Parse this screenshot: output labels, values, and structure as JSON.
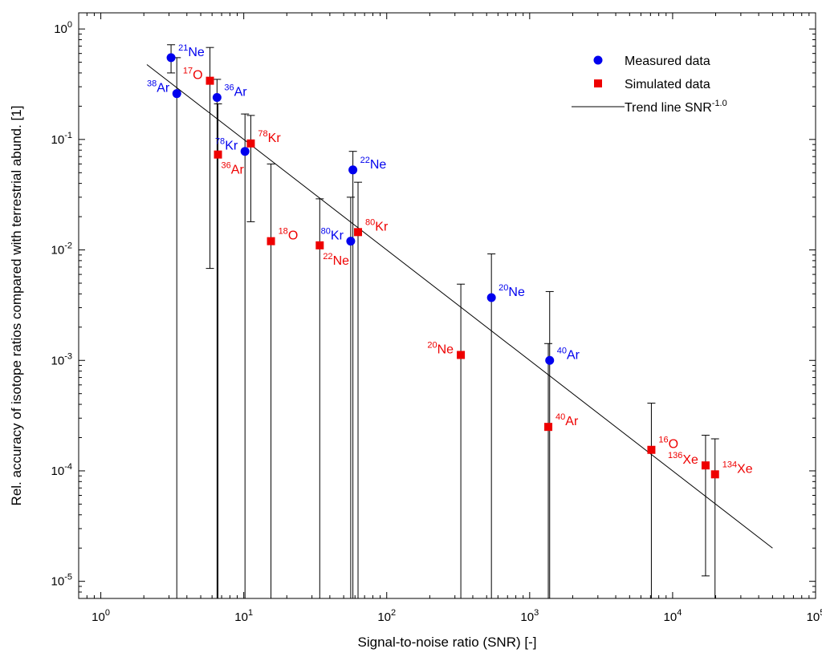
{
  "chart_data": {
    "type": "scatter",
    "title": "",
    "xlabel": "Signal-to-noise ratio (SNR) [-]",
    "ylabel": "Rel. accuracy of isotope ratios compared with terrestrial abund. [1]",
    "x_scale": "log",
    "y_scale": "log",
    "xlim": [
      0.7,
      100000
    ],
    "ylim": [
      7e-06,
      1.4
    ],
    "x_ticks": [
      {
        "base": "10",
        "exp": "0",
        "value": 1
      },
      {
        "base": "10",
        "exp": "1",
        "value": 10
      },
      {
        "base": "10",
        "exp": "2",
        "value": 100
      },
      {
        "base": "10",
        "exp": "3",
        "value": 1000
      },
      {
        "base": "10",
        "exp": "4",
        "value": 10000
      },
      {
        "base": "10",
        "exp": "5",
        "value": 100000
      }
    ],
    "y_ticks": [
      {
        "base": "10",
        "exp": "0",
        "value": 1
      },
      {
        "base": "10",
        "exp": "-1",
        "value": 0.1
      },
      {
        "base": "10",
        "exp": "-2",
        "value": 0.01
      },
      {
        "base": "10",
        "exp": "-3",
        "value": 0.001
      },
      {
        "base": "10",
        "exp": "-4",
        "value": 0.0001
      },
      {
        "base": "10",
        "exp": "-5",
        "value": 1e-05
      }
    ],
    "grid": false,
    "legend_position": "top-right",
    "colors": {
      "measured": "#0000ee",
      "simulated": "#ee0000",
      "trend": "#000000"
    },
    "legend": [
      {
        "label": "Measured data",
        "marker": "circle",
        "color": "#0000ee"
      },
      {
        "label": "Simulated data",
        "marker": "square",
        "color": "#ee0000"
      },
      {
        "label": "Trend line SNR",
        "label_sup": "-1.0",
        "marker": "line",
        "color": "#000000"
      }
    ],
    "series": [
      {
        "name": "Measured data",
        "marker": "circle",
        "color": "#0000ee",
        "points": [
          {
            "mass": "21",
            "element": "Ne",
            "label_pos": "right",
            "x": 3.1,
            "y": 0.55,
            "err_low": 0.4,
            "err_high": 0.72
          },
          {
            "mass": "38",
            "element": "Ar",
            "label_pos": "left",
            "x": 3.4,
            "y": 0.26,
            "err_low": 7e-06,
            "err_high": 0.55
          },
          {
            "mass": "36",
            "element": "Ar",
            "label_pos": "right",
            "x": 6.5,
            "y": 0.24,
            "err_low": 7e-06,
            "err_high": 0.35
          },
          {
            "mass": "78",
            "element": "Kr",
            "label_pos": "left",
            "x": 10.2,
            "y": 0.078,
            "err_low": 7e-06,
            "err_high": 0.17
          },
          {
            "mass": "22",
            "element": "Ne",
            "label_pos": "right",
            "x": 58,
            "y": 0.053,
            "err_low": 7e-06,
            "err_high": 0.078
          },
          {
            "mass": "80",
            "element": "Kr",
            "label_pos": "left",
            "x": 56,
            "y": 0.012,
            "err_low": 7e-06,
            "err_high": 0.03
          },
          {
            "mass": "20",
            "element": "Ne",
            "label_pos": "right",
            "x": 540,
            "y": 0.0037,
            "err_low": 7e-06,
            "err_high": 0.0092
          },
          {
            "mass": "40",
            "element": "Ar",
            "label_pos": "right",
            "x": 1380,
            "y": 0.001,
            "err_low": 7e-06,
            "err_high": 0.0042
          }
        ]
      },
      {
        "name": "Simulated data",
        "marker": "square",
        "color": "#ee0000",
        "points": [
          {
            "mass": "17",
            "element": "O",
            "label_pos": "left",
            "x": 5.8,
            "y": 0.34,
            "err_low": 0.0068,
            "err_high": 0.68
          },
          {
            "mass": "36",
            "element": "Ar",
            "label_pos": "below-right",
            "x": 6.6,
            "y": 0.073,
            "err_low": 7e-06,
            "err_high": 0.21
          },
          {
            "mass": "78",
            "element": "Kr",
            "label_pos": "right",
            "x": 11.2,
            "y": 0.092,
            "err_low": 0.018,
            "err_high": 0.165
          },
          {
            "mass": "18",
            "element": "O",
            "label_pos": "right",
            "x": 15.5,
            "y": 0.012,
            "err_low": 7e-06,
            "err_high": 0.06
          },
          {
            "mass": "22",
            "element": "Ne",
            "label_pos": "below-right",
            "x": 34,
            "y": 0.011,
            "err_low": 7e-06,
            "err_high": 0.029
          },
          {
            "mass": "80",
            "element": "Kr",
            "label_pos": "right",
            "x": 63,
            "y": 0.0145,
            "err_low": 7e-06,
            "err_high": 0.041
          },
          {
            "mass": "20",
            "element": "Ne",
            "label_pos": "left",
            "x": 330,
            "y": 0.00112,
            "err_low": 7e-06,
            "err_high": 0.0049
          },
          {
            "mass": "40",
            "element": "Ar",
            "label_pos": "right",
            "x": 1350,
            "y": 0.00025,
            "err_low": 7e-06,
            "err_high": 0.00142
          },
          {
            "mass": "16",
            "element": "O",
            "label_pos": "right",
            "x": 7100,
            "y": 0.000155,
            "err_low": 7e-06,
            "err_high": 0.00041
          },
          {
            "mass": "136",
            "element": "Xe",
            "label_pos": "left",
            "x": 17000,
            "y": 0.000112,
            "err_low": 1.12e-05,
            "err_high": 0.00021
          },
          {
            "mass": "134",
            "element": "Xe",
            "label_pos": "right",
            "x": 19800,
            "y": 9.3e-05,
            "err_low": 7e-06,
            "err_high": 0.000195
          }
        ]
      }
    ],
    "trend_line": {
      "name": "Trend line SNR",
      "name_sup": "-1.0",
      "slope": -1.0,
      "coefficient": 1.0,
      "x_start": 2.1,
      "x_end": 50000
    }
  }
}
